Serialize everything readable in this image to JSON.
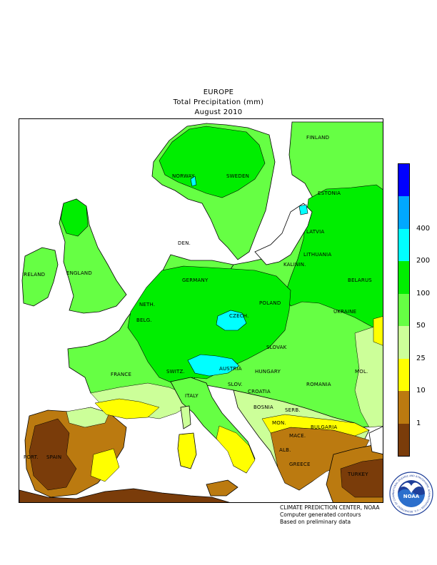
{
  "title": {
    "region": "EUROPE",
    "variable": "Total Precipitation (mm)",
    "period": "August 2010"
  },
  "legend": {
    "colors": [
      "#7a3c0a",
      "#bb7a10",
      "#ffff00",
      "#ccff99",
      "#66ff44",
      "#00ee00",
      "#00ffff",
      "#00a8ff",
      "#0000ff"
    ],
    "ticks": [
      "1",
      "10",
      "25",
      "50",
      "100",
      "200",
      "400"
    ]
  },
  "countries": {
    "finland": "FINLAND",
    "norway": "NORWAY",
    "sweden": "SWEDEN",
    "estonia": "ESTONIA",
    "latvia": "LATVIA",
    "den": "DEN.",
    "lithuania": "LITHUANIA",
    "kalinin": "KALININ.",
    "ireland": "IRELAND",
    "england": "ENGLAND",
    "belarus": "BELARUS",
    "germany": "GERMANY",
    "poland": "POLAND",
    "neth": "NETH.",
    "belg": "BELG.",
    "ukraine": "UKRAINE",
    "czech": "CZECH.",
    "slovak": "SLOVAK",
    "france": "FRANCE",
    "switz": "SWITZ.",
    "austria": "AUSTRIA",
    "hungary": "HUNGARY",
    "mol": "MOL.",
    "romania": "ROMANIA",
    "slov": "SLOV.",
    "croatia": "CROATIA",
    "italy": "ITALY",
    "bosnia": "BOSNIA",
    "serb": "SERB.",
    "bulgaria": "BULGARIA",
    "mon": "MON.",
    "mace": "MACE.",
    "alb": "ALB.",
    "port": "PORT.",
    "spain": "SPAIN",
    "greece": "GREECE",
    "turkey": "TURKEY"
  },
  "credits": {
    "line1": "CLIMATE PREDICTION CENTER, NOAA",
    "line2": "Computer generated contours",
    "line3": "Based on preliminary data"
  },
  "logo": {
    "text": "NOAA",
    "ring_text": "NATIONAL OCEANIC AND ATMOSPHERIC ADMINISTRATION • U.S. DEPARTMENT OF COMMERCE"
  }
}
